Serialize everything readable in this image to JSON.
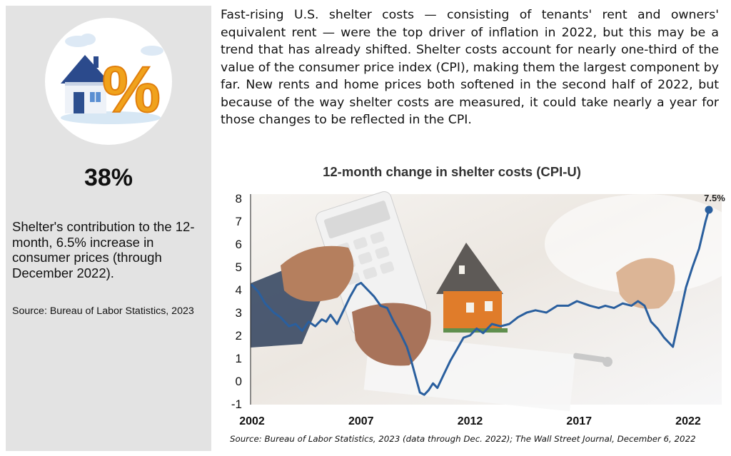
{
  "sidebar": {
    "stat_value": "38%",
    "stat_description": "Shelter's contribution to the 12-month, 6.5% increase in consumer prices (through December 2022).",
    "source": "Source: Bureau of Labor Statistics, 2023",
    "icon": "house-percent-icon"
  },
  "intro_text": "Fast-rising U.S. shelter costs — consisting of tenants' rent and owners' equivalent rent — were the top driver of inflation in 2022, but this may be a trend that has already shifted. Shelter costs account for nearly one-third of the value of the consumer price index (CPI), making them the largest component by far. New rents and home prices both softened in the second half of 2022, but because of the way shelter costs are measured, it could take nearly a year for those changes to be reflected in the CPI.",
  "chart_source": "Source: Bureau of Labor Statistics, 2023 (data through Dec. 2022); The Wall Street Journal, December 6, 2022",
  "colors": {
    "line": "#2a5f9e",
    "sidebar_bg": "#e3e3e3",
    "stat_text": "#111111"
  },
  "chart_data": {
    "type": "line",
    "title": "12-month change in shelter costs (CPI-U)",
    "xlabel": "",
    "ylabel": "",
    "xlim": [
      2002,
      2022.95
    ],
    "ylim": [
      -1,
      8
    ],
    "yticks": [
      -1,
      0,
      1,
      2,
      3,
      4,
      5,
      6,
      7,
      8
    ],
    "xticks": [
      2002,
      2007,
      2012,
      2017,
      2022
    ],
    "grid": false,
    "endpoint_label": "7.5%",
    "series": [
      {
        "x": [
          2002.0,
          2002.3,
          2002.6,
          2003.0,
          2003.3,
          2003.7,
          2004.0,
          2004.3,
          2004.6,
          2004.9,
          2005.2,
          2005.4,
          2005.6,
          2005.9,
          2006.2,
          2006.5,
          2006.8,
          2007.0,
          2007.3,
          2007.6,
          2007.9,
          2008.2,
          2008.5,
          2008.8,
          2009.1,
          2009.3,
          2009.5,
          2009.7,
          2009.9,
          2010.1,
          2010.3,
          2010.5,
          2010.8,
          2011.1,
          2011.4,
          2011.7,
          2012.0,
          2012.3,
          2012.6,
          2013.0,
          2013.4,
          2013.8,
          2014.2,
          2014.6,
          2015.0,
          2015.5,
          2016.0,
          2016.5,
          2016.9,
          2017.2,
          2017.5,
          2017.9,
          2018.2,
          2018.6,
          2019.0,
          2019.4,
          2019.7,
          2020.0,
          2020.3,
          2020.6,
          2020.9,
          2021.1,
          2021.3,
          2021.6,
          2021.9,
          2022.2,
          2022.5,
          2022.8,
          2022.95
        ],
        "y": [
          4.2,
          3.9,
          3.4,
          3.0,
          2.8,
          2.4,
          2.5,
          2.2,
          2.6,
          2.4,
          2.7,
          2.6,
          2.9,
          2.5,
          3.1,
          3.7,
          4.2,
          4.3,
          4.0,
          3.7,
          3.3,
          3.2,
          2.6,
          2.1,
          1.5,
          0.9,
          0.2,
          -0.5,
          -0.6,
          -0.4,
          -0.1,
          -0.3,
          0.3,
          0.9,
          1.4,
          1.9,
          2.0,
          2.3,
          2.1,
          2.5,
          2.4,
          2.5,
          2.8,
          3.0,
          3.1,
          3.0,
          3.3,
          3.3,
          3.5,
          3.4,
          3.3,
          3.2,
          3.3,
          3.2,
          3.4,
          3.3,
          3.5,
          3.3,
          2.6,
          2.3,
          1.9,
          1.7,
          1.5,
          2.8,
          4.1,
          5.0,
          5.8,
          7.0,
          7.5
        ]
      }
    ]
  }
}
